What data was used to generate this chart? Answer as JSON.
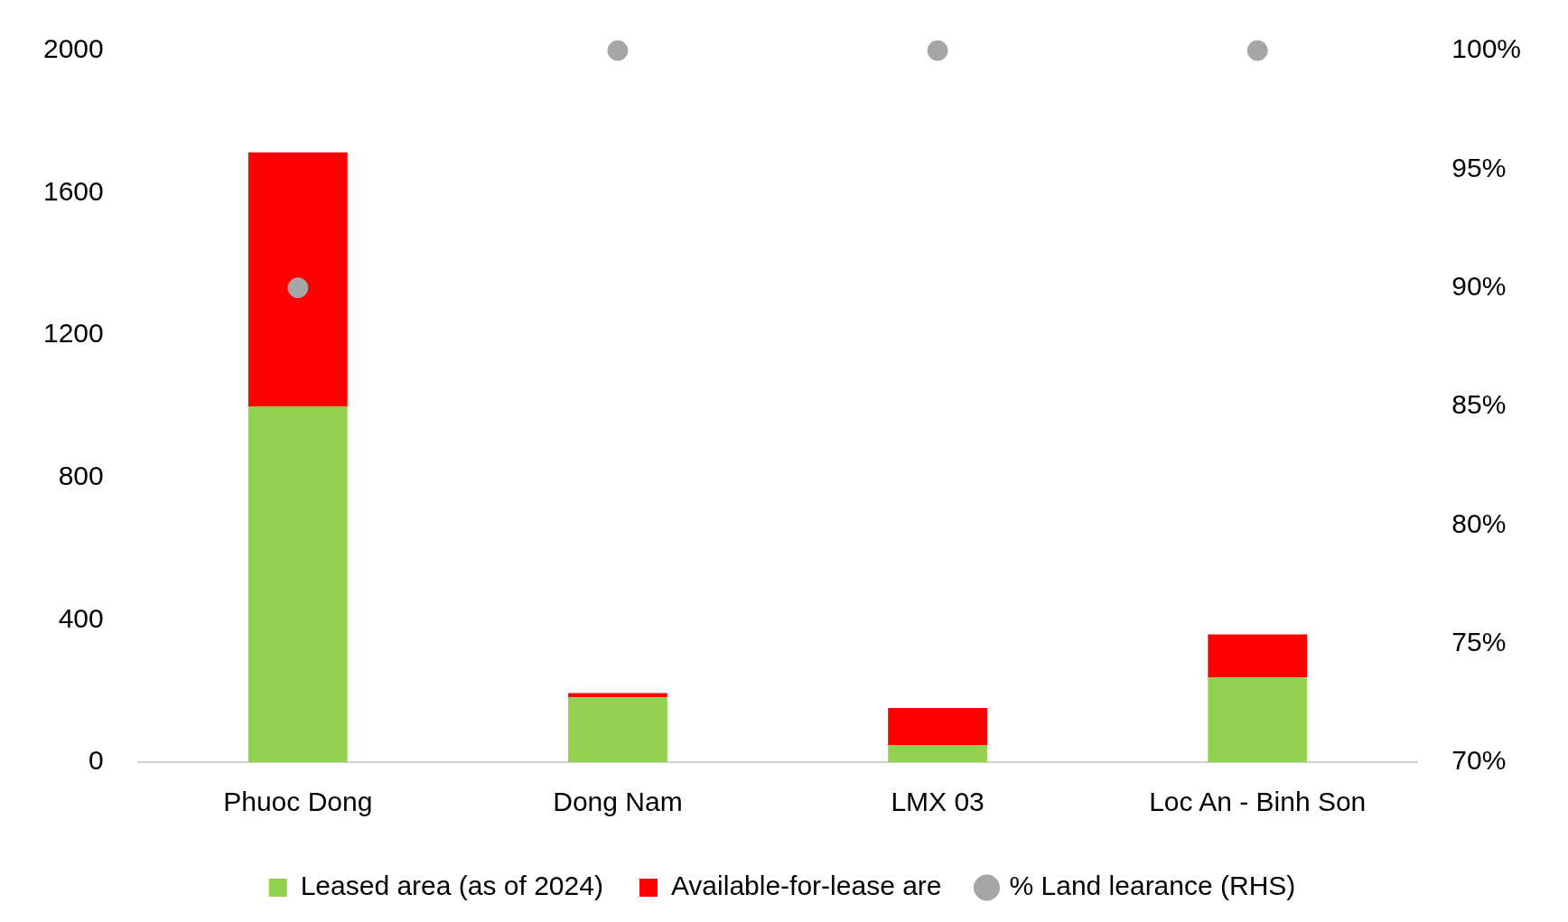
{
  "chart_data": {
    "type": "bar",
    "stacked": true,
    "categories": [
      "Phuoc Dong",
      "Dong Nam",
      "LMX 03",
      "Loc An - Binh Son"
    ],
    "series": [
      {
        "name": "Leased area (as of 2024)",
        "color": "#92d050",
        "values": [
          1000,
          182,
          48,
          238
        ]
      },
      {
        "name": "Available-for-lease are",
        "color": "#ff0000",
        "values": [
          714,
          12,
          104,
          121
        ]
      },
      {
        "name": "% Land learance (RHS)",
        "type": "scatter",
        "axis": "y2",
        "color": "#a6a6a6",
        "x": [
          "Phuoc Dong",
          "Dong Nam",
          "LMX 03",
          "Loc An - Binh Son"
        ],
        "values": [
          90,
          100,
          100,
          100
        ]
      }
    ],
    "ylim": [
      0,
      2000
    ],
    "yticks": [
      0,
      400,
      800,
      1200,
      1600,
      2000
    ],
    "y2lim": [
      70,
      100
    ],
    "y2ticks": [
      {
        "value": 70,
        "label": "70%"
      },
      {
        "value": 75,
        "label": "75%"
      },
      {
        "value": 80,
        "label": "80%"
      },
      {
        "value": 85,
        "label": "85%"
      },
      {
        "value": 90,
        "label": "90%"
      },
      {
        "value": 95,
        "label": "95%"
      },
      {
        "value": 100,
        "label": "100%"
      }
    ],
    "legend": "bottom"
  }
}
